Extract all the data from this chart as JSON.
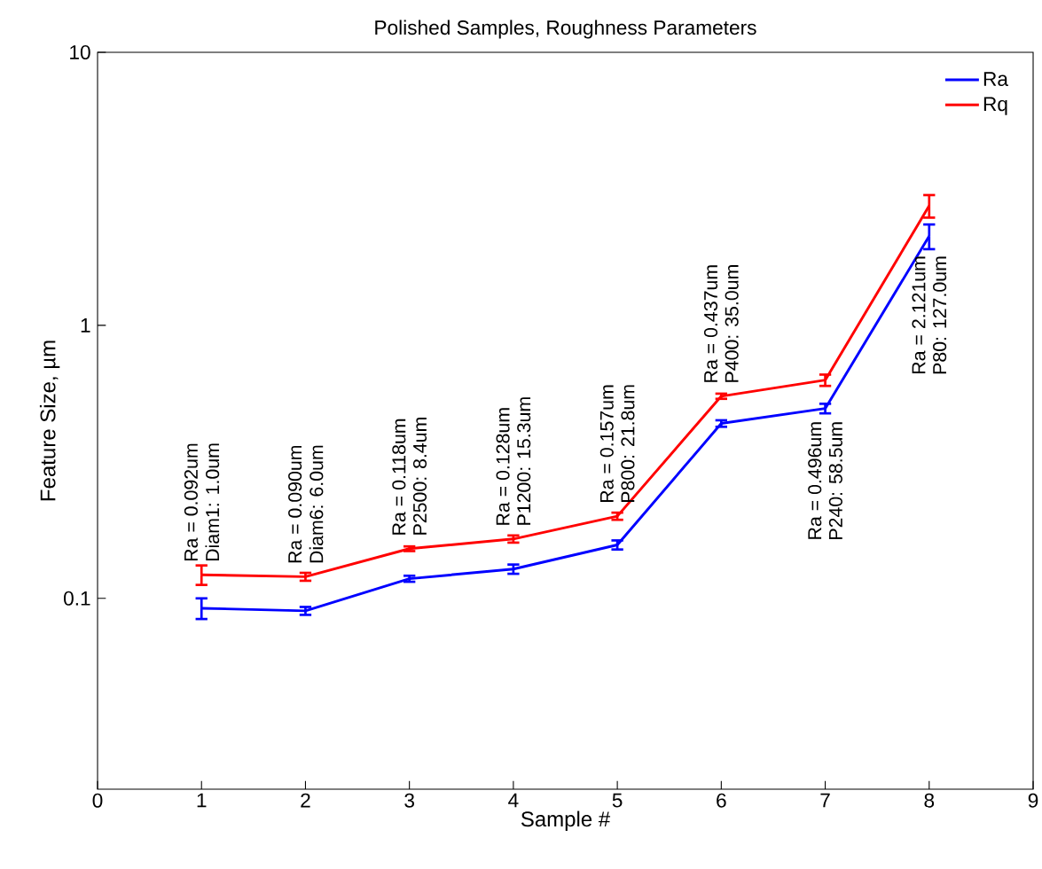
{
  "chart_data": {
    "type": "line",
    "title": "Polished Samples, Roughness Parameters",
    "xlabel": "Sample #",
    "ylabel": "Feature Size, µm",
    "x": [
      1,
      2,
      3,
      4,
      5,
      6,
      7,
      8
    ],
    "series": [
      {
        "name": "Ra",
        "color": "#0000ff",
        "values": [
          0.092,
          0.09,
          0.118,
          0.128,
          0.157,
          0.437,
          0.496,
          2.121
        ],
        "errors": [
          0.008,
          0.003,
          0.003,
          0.005,
          0.006,
          0.012,
          0.02,
          0.22
        ]
      },
      {
        "name": "Rq",
        "color": "#ff0000",
        "values": [
          0.122,
          0.12,
          0.152,
          0.165,
          0.2,
          0.55,
          0.63,
          2.74
        ],
        "errors": [
          0.01,
          0.004,
          0.003,
          0.005,
          0.006,
          0.012,
          0.03,
          0.26
        ]
      }
    ],
    "xlim": [
      0,
      9
    ],
    "xticks": [
      0,
      1,
      2,
      3,
      4,
      5,
      6,
      7,
      8,
      9
    ],
    "ylim": [
      0.02,
      10
    ],
    "yticks": [
      0.1,
      1,
      10
    ],
    "log": "y",
    "legend": "top right",
    "grid": false,
    "marker": "none",
    "line_style": "solid",
    "annotations": [
      "Ra = 0.092um",
      "Diam1: 1.0um",
      "Ra = 0.090um",
      "Diam6: 6.0um",
      "Ra = 0.118um",
      "P2500: 8.4um",
      "Ra = 0.128um",
      "P1200: 15.3um",
      "Ra = 0.157um",
      "P800: 21.8um",
      "Ra = 0.437um",
      "P400: 35.0um",
      "Ra = 0.496um",
      "P240: 58.5um",
      "Ra = 2.121um",
      "P80: 127.0um"
    ]
  }
}
